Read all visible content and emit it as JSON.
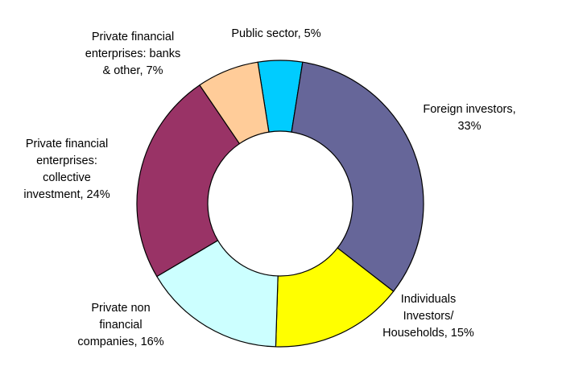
{
  "chart_data": {
    "type": "pie",
    "donut": true,
    "title": "",
    "series": [
      {
        "values": [
          5,
          33,
          15,
          16,
          24,
          7
        ],
        "labels": [
          [
            "Public sector, 5%"
          ],
          [
            "Foreign investors,",
            "33%"
          ],
          [
            "Individuals",
            "Investors/",
            "Households, 15%"
          ],
          [
            "Private non",
            "financial",
            "companies, 16%"
          ],
          [
            "Private financial",
            "enterprises:",
            "collective",
            "investment, 24%"
          ],
          [
            "Private financial",
            "enterprises: banks",
            "& other, 7%"
          ]
        ],
        "colors": [
          "#00ccff",
          "#666699",
          "#ffff00",
          "#ccffff",
          "#993366",
          "#ffcc99"
        ]
      }
    ],
    "legend": "none"
  }
}
